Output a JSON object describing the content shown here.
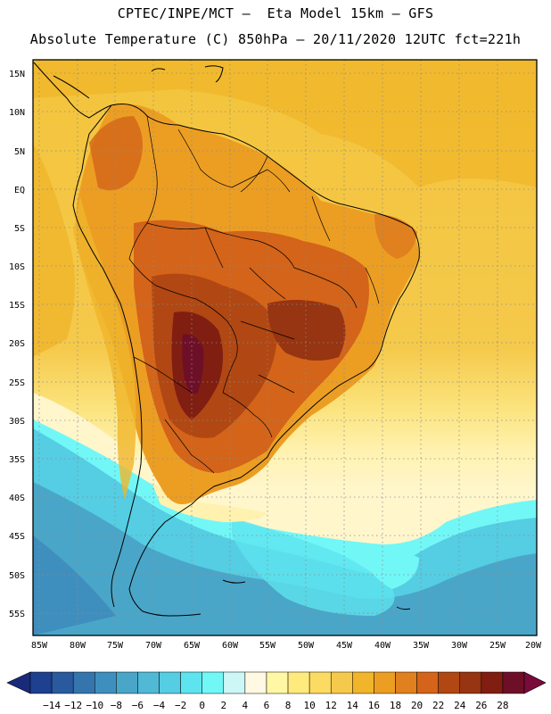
{
  "header": {
    "line1": "CPTEC/INPE/MCT –  Eta Model 15km – GFS",
    "line2": "Absolute Temperature (C) 850hPa – 20/11/2020 12UTC fct=221h"
  },
  "map": {
    "lat_labels": [
      "15N",
      "10N",
      "5N",
      "EQ",
      "5S",
      "10S",
      "15S",
      "20S",
      "25S",
      "30S",
      "35S",
      "40S",
      "45S",
      "50S",
      "55S"
    ],
    "lon_labels": [
      "85W",
      "80W",
      "75W",
      "70W",
      "65W",
      "60W",
      "55W",
      "50W",
      "45W",
      "40W",
      "35W",
      "30W",
      "25W",
      "20W"
    ]
  },
  "colorbar": {
    "labels": [
      "-14",
      "-12",
      "-10",
      "-8",
      "-6",
      "-4",
      "-2",
      "0",
      "2",
      "4",
      "6",
      "8",
      "10",
      "12",
      "14",
      "16",
      "18",
      "20",
      "22",
      "24",
      "26",
      "28"
    ],
    "colors": [
      "#1f3f8f",
      "#2a5a9e",
      "#3475ad",
      "#3f8fbe",
      "#4aa6c8",
      "#4fb9d6",
      "#55cde3",
      "#5ee4ee",
      "#72f7f7",
      "#cdf6f6",
      "#fff8e2",
      "#fff7a3",
      "#ffea7e",
      "#fcdb62",
      "#f5c94b",
      "#f0b52a",
      "#ec9e23",
      "#e0801e",
      "#d36419",
      "#b14712",
      "#973411",
      "#801e12",
      "#6e0f28"
    ],
    "low_arrow_color": "#1a2a7a",
    "high_arrow_color": "#7a0a3a"
  },
  "colors": {
    "ocean_warm": "#f4c03c",
    "land_hot": "#b54a18",
    "cold_south": "#4ab8d8"
  }
}
